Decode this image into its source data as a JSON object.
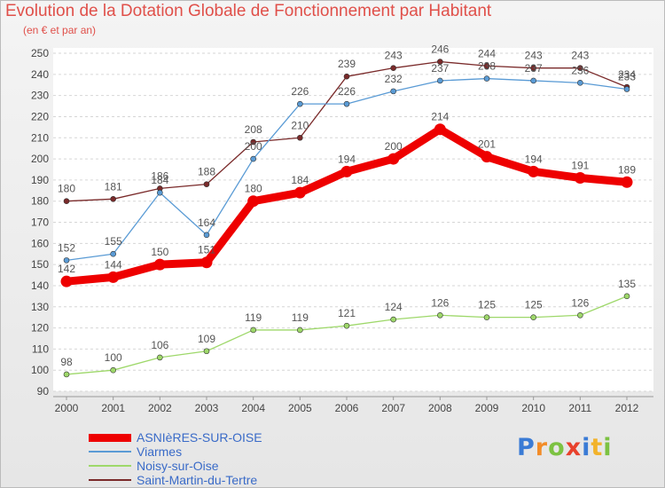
{
  "chart_data": {
    "type": "line",
    "title": "Evolution de la Dotation Globale de Fonctionnement par Habitant",
    "subtitle": "(en € et par an)",
    "x": [
      "2000",
      "2001",
      "2002",
      "2003",
      "2004",
      "2005",
      "2006",
      "2007",
      "2008",
      "2009",
      "2010",
      "2011",
      "2012"
    ],
    "ylim": [
      90,
      250
    ],
    "yticks": [
      90,
      100,
      110,
      120,
      130,
      140,
      150,
      160,
      170,
      180,
      190,
      200,
      210,
      220,
      230,
      240,
      250
    ],
    "grid": true,
    "legend_position": "bottom-left",
    "series": [
      {
        "name": "Saint-Martin-du-Tertre",
        "color": "#7a2a2a",
        "values": [
          180,
          181,
          186,
          188,
          208,
          210,
          239,
          243,
          246,
          244,
          243,
          243,
          234
        ]
      },
      {
        "name": "Viarmes",
        "color": "#5a9bd5",
        "values": [
          152,
          155,
          184,
          164,
          200,
          226,
          226,
          232,
          237,
          238,
          237,
          236,
          233
        ]
      },
      {
        "name": "Noisy-sur-Oise",
        "color": "#9ed86a",
        "values": [
          98,
          100,
          106,
          109,
          119,
          119,
          121,
          124,
          126,
          125,
          125,
          126,
          135
        ]
      },
      {
        "name": "ASNIèRES-SUR-OISE",
        "color": "#ee0000",
        "values": [
          142,
          144,
          150,
          151,
          180,
          184,
          194,
          200,
          214,
          201,
          194,
          191,
          189
        ]
      }
    ]
  },
  "legend_order": [
    3,
    1,
    2,
    0
  ],
  "logo": {
    "letters": [
      "P",
      "r",
      "o",
      "x",
      "i",
      "t",
      "i"
    ],
    "colors": [
      "#3a7bd5",
      "#f28c28",
      "#7cc242",
      "#e8412c",
      "#3a7bd5",
      "#f2b32b",
      "#7cc242"
    ]
  }
}
